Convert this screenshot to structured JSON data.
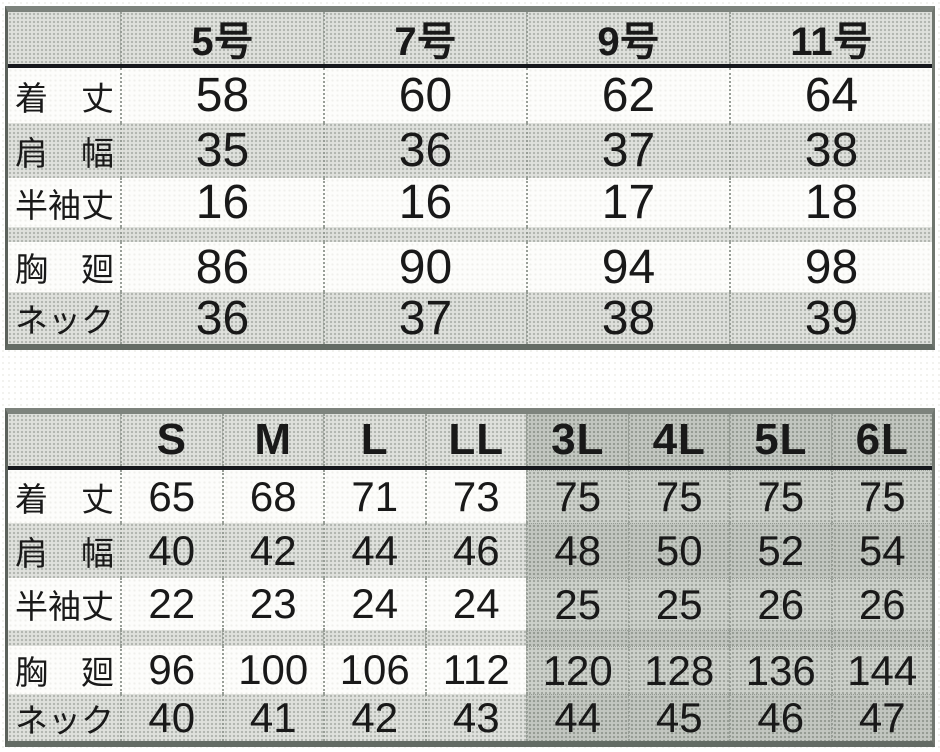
{
  "t1": {
    "columns": [
      "5号",
      "7号",
      "9号",
      "11号"
    ],
    "rows": [
      {
        "label": "着　丈",
        "values": [
          "58",
          "60",
          "62",
          "64"
        ]
      },
      {
        "label": "肩　幅",
        "values": [
          "35",
          "36",
          "37",
          "38"
        ]
      },
      {
        "label": "半袖丈",
        "values": [
          "16",
          "16",
          "17",
          "18"
        ]
      },
      {
        "label": "胸　廻",
        "values": [
          "86",
          "90",
          "94",
          "98"
        ]
      },
      {
        "label": "ネック",
        "values": [
          "36",
          "37",
          "38",
          "39"
        ]
      }
    ]
  },
  "t2": {
    "columns": [
      "S",
      "M",
      "L",
      "LL",
      "3L",
      "4L",
      "5L",
      "6L"
    ],
    "rows": [
      {
        "label": "着　丈",
        "values": [
          "65",
          "68",
          "71",
          "73",
          "75",
          "75",
          "75",
          "75"
        ]
      },
      {
        "label": "肩　幅",
        "values": [
          "40",
          "42",
          "44",
          "46",
          "48",
          "50",
          "52",
          "54"
        ]
      },
      {
        "label": "半袖丈",
        "values": [
          "22",
          "23",
          "24",
          "24",
          "25",
          "25",
          "26",
          "26"
        ]
      },
      {
        "label": "胸　廻",
        "values": [
          "96",
          "100",
          "106",
          "112",
          "120",
          "128",
          "136",
          "144"
        ]
      },
      {
        "label": "ネック",
        "values": [
          "40",
          "41",
          "42",
          "43",
          "44",
          "45",
          "46",
          "47"
        ]
      }
    ]
  },
  "style": {
    "stripe_gray": "#dfe1dc",
    "dark_block_gray": "#ccd0ca",
    "header_rule_black": "#16181d",
    "text_color": "#191919"
  }
}
